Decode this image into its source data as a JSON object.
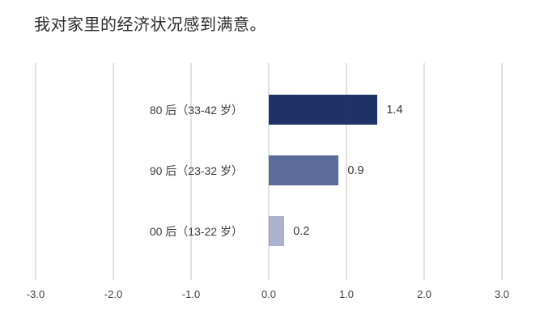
{
  "chart_data": {
    "type": "bar",
    "orientation": "horizontal",
    "title": "我对家里的经济状况感到满意。",
    "categories": [
      "80 后（33-42 岁）",
      "90 后（23-32 岁）",
      "00 后（13-22 岁）"
    ],
    "values": [
      1.4,
      0.9,
      0.2
    ],
    "value_labels": [
      "1.4",
      "0.9",
      "0.2"
    ],
    "bar_colors": [
      "#1f3268",
      "#5b6c9b",
      "#acb2ce"
    ],
    "x_ticks": [
      "-3.0",
      "-2.0",
      "-1.0",
      "0.0",
      "1.0",
      "2.0",
      "3.0"
    ],
    "xlim": [
      -3.0,
      3.0
    ],
    "xlabel": "",
    "ylabel": "",
    "grid": "vertical",
    "gridline_color": "#dddddd",
    "background_color": "#ffffff",
    "legend": "none"
  }
}
